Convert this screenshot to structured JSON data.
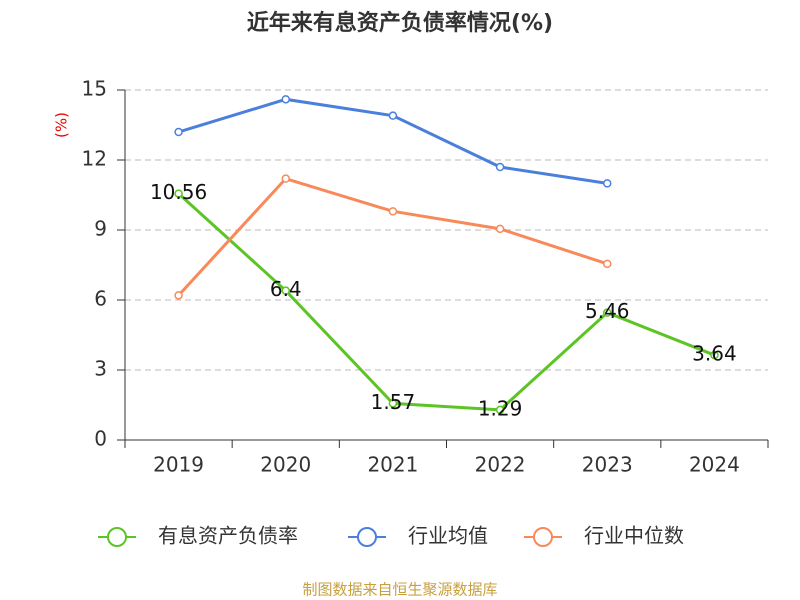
{
  "chart_data": {
    "type": "line",
    "title": "近年来有息资产负债率情况(%)",
    "y_label": "(%)",
    "categories": [
      "2019",
      "2020",
      "2021",
      "2022",
      "2023",
      "2024"
    ],
    "series": [
      {
        "name": "有息资产负债率",
        "color": "#5cc425",
        "values": [
          10.56,
          6.4,
          1.57,
          1.29,
          5.46,
          3.64
        ],
        "show_labels": true
      },
      {
        "name": "行业均值",
        "color": "#4a7fdc",
        "values": [
          13.2,
          14.6,
          13.9,
          11.7,
          11.0,
          null
        ],
        "show_labels": false
      },
      {
        "name": "行业中位数",
        "color": "#f7895a",
        "values": [
          6.2,
          11.2,
          9.8,
          9.05,
          7.55,
          null
        ],
        "show_labels": false
      }
    ],
    "ylim": [
      0,
      15
    ],
    "yticks": [
      0,
      3,
      6,
      9,
      12,
      15
    ],
    "grid": true,
    "source": "制图数据来自恒生聚源数据库"
  }
}
